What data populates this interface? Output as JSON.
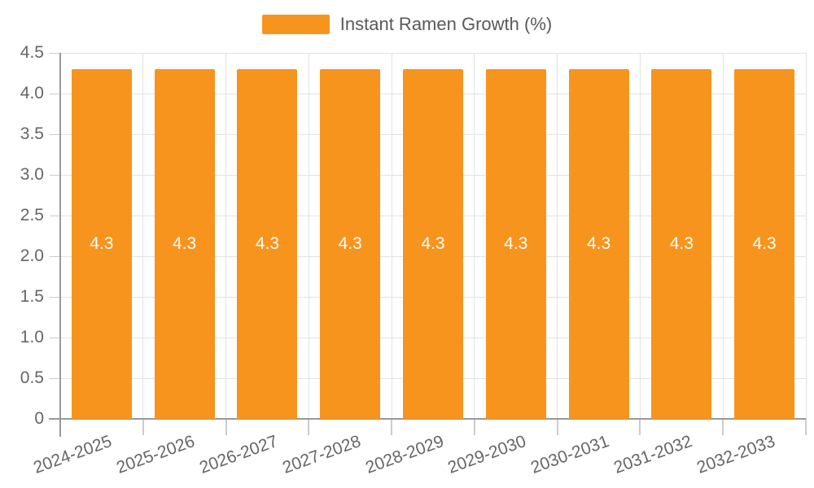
{
  "legend": {
    "label": "Instant Ramen Growth (%)",
    "swatch_color": "#F7941E"
  },
  "chart_data": {
    "type": "bar",
    "title": "",
    "categories": [
      "2024-2025",
      "2025-2026",
      "2026-2027",
      "2027-2028",
      "2028-2029",
      "2029-2030",
      "2030-2031",
      "2031-2032",
      "2032-2033"
    ],
    "series": [
      {
        "name": "Instant Ramen Growth (%)",
        "values": [
          4.3,
          4.3,
          4.3,
          4.3,
          4.3,
          4.3,
          4.3,
          4.3,
          4.3
        ],
        "color": "#F7941E"
      }
    ],
    "value_labels": [
      "4.3",
      "4.3",
      "4.3",
      "4.3",
      "4.3",
      "4.3",
      "4.3",
      "4.3",
      "4.3"
    ],
    "ylim": [
      0,
      4.5
    ],
    "ytick_step": 0.5,
    "ytick_labels": [
      "0",
      "0.5",
      "1.0",
      "1.5",
      "2.0",
      "2.5",
      "3.0",
      "3.5",
      "4.0",
      "4.5"
    ],
    "grid": true,
    "legend_position": "top-center",
    "xlabel": "",
    "ylabel": ""
  },
  "colors": {
    "bar": "#F7941E",
    "bar_label_text": "#FFFFFF",
    "axis": "#999999",
    "grid": "#E2E2E2",
    "tick": "#CCCCCC",
    "axis_label_text": "#666666",
    "legend_text": "#595959",
    "background": "#FFFFFF"
  }
}
